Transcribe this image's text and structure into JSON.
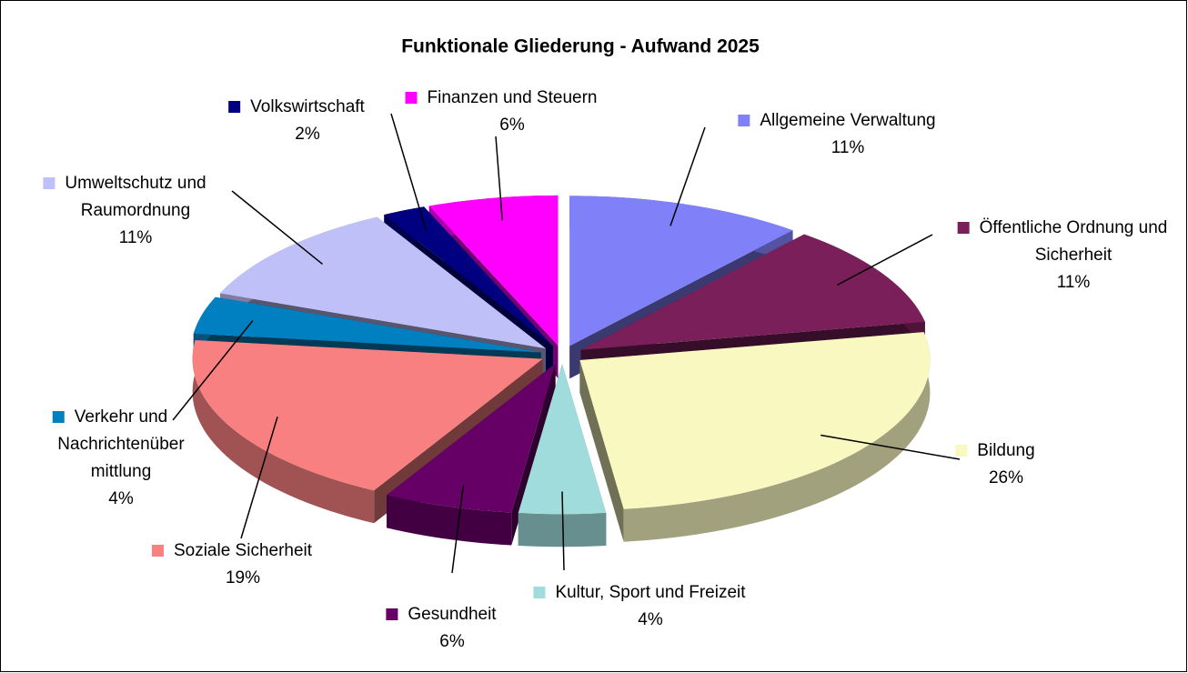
{
  "chart_data": {
    "type": "pie",
    "title": "Funktionale Gliederung - Aufwand 2025",
    "categories": [
      "Allgemeine Verwaltung",
      "Öffentliche Ordnung und\nSicherheit",
      "Bildung",
      "Kultur, Sport und Freizeit",
      "Gesundheit",
      "Soziale Sicherheit",
      "Verkehr und\nNachrichtenüber\nmittlung",
      "Umweltschutz und\nRaumordnung",
      "Volkswirtschaft",
      "Finanzen und Steuern"
    ],
    "values": [
      11,
      11,
      26,
      4,
      6,
      19,
      4,
      11,
      2,
      6
    ],
    "value_labels": [
      "11%",
      "11%",
      "26%",
      "4%",
      "6%",
      "19%",
      "4%",
      "11%",
      "2%",
      "6%"
    ],
    "colors": [
      "#8080f8",
      "#7b1f5a",
      "#f8f8c0",
      "#a0dcdc",
      "#660066",
      "#f88080",
      "#0080c0",
      "#c0c0f8",
      "#000080",
      "#ff00ff"
    ]
  }
}
